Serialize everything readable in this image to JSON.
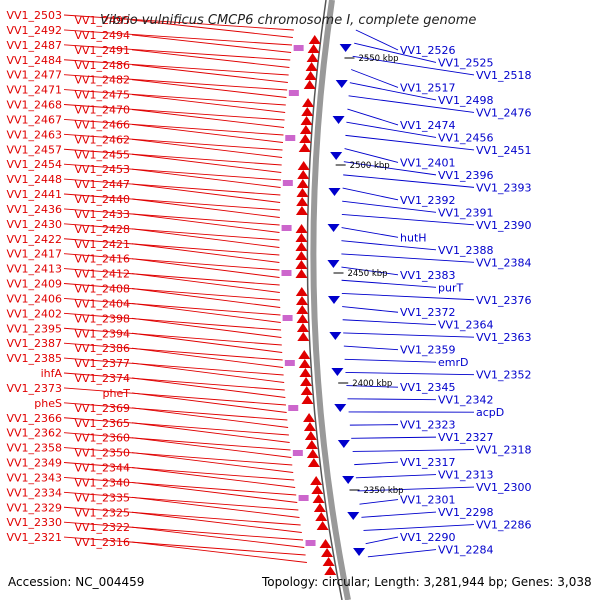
{
  "title": "Vibrio vulnificus CMCP6 chromosome I, complete genome",
  "footer": {
    "accession": "Accession: NC_004459",
    "summary": "Topology: circular; Length: 3,281,944 bp; Genes: 3,038"
  },
  "colors": {
    "forward_strand": "#e00000",
    "reverse_strand": "#0000cc",
    "backbone": "#888888"
  },
  "scale_marks": [
    {
      "label": "2550 kbp"
    },
    {
      "label": "2500 kbp"
    },
    {
      "label": "2450 kbp"
    },
    {
      "label": "2400 kbp"
    },
    {
      "label": "2350 kbp"
    }
  ],
  "left_labels": [
    "VV1_2503",
    "VV1_2495",
    "VV1_2492",
    "VV1_2494",
    "VV1_2487",
    "VV1_2491",
    "VV1_2484",
    "VV1_2486",
    "VV1_2477",
    "VV1_2482",
    "VV1_2471",
    "VV1_2475",
    "VV1_2468",
    "VV1_2470",
    "VV1_2467",
    "VV1_2466",
    "VV1_2463",
    "VV1_2462",
    "VV1_2457",
    "VV1_2455",
    "VV1_2454",
    "VV1_2453",
    "VV1_2448",
    "VV1_2447",
    "VV1_2441",
    "VV1_2440",
    "VV1_2436",
    "VV1_2433",
    "VV1_2430",
    "VV1_2428",
    "VV1_2422",
    "VV1_2421",
    "VV1_2417",
    "VV1_2416",
    "VV1_2413",
    "VV1_2412",
    "VV1_2409",
    "VV1_2408",
    "VV1_2406",
    "VV1_2404",
    "VV1_2402",
    "VV1_2398",
    "VV1_2395",
    "VV1_2394",
    "VV1_2387",
    "VV1_2386",
    "VV1_2385",
    "VV1_2377",
    "ihfA",
    "VV1_2374",
    "VV1_2373",
    "pheT",
    "pheS",
    "VV1_2369",
    "VV1_2366",
    "VV1_2365",
    "VV1_2362",
    "VV1_2360",
    "VV1_2358",
    "VV1_2350",
    "VV1_2349",
    "VV1_2344",
    "VV1_2343",
    "VV1_2340",
    "VV1_2334",
    "VV1_2335",
    "VV1_2329",
    "VV1_2325",
    "VV1_2330",
    "VV1_2322",
    "VV1_2321",
    "VV1_2316"
  ],
  "right_labels": [
    "VV1_2526",
    "VV1_2525",
    "VV1_2518",
    "VV1_2517",
    "VV1_2498",
    "VV1_2476",
    "VV1_2474",
    "VV1_2456",
    "VV1_2451",
    "VV1_2401",
    "VV1_2396",
    "VV1_2393",
    "VV1_2392",
    "VV1_2391",
    "VV1_2390",
    "hutH",
    "VV1_2388",
    "VV1_2384",
    "VV1_2383",
    "purT",
    "VV1_2376",
    "VV1_2372",
    "VV1_2364",
    "VV1_2363",
    "VV1_2359",
    "emrD",
    "VV1_2352",
    "VV1_2345",
    "VV1_2342",
    "acpD",
    "VV1_2323",
    "VV1_2327",
    "VV1_2318",
    "VV1_2317",
    "VV1_2313",
    "VV1_2300",
    "VV1_2301",
    "VV1_2298",
    "VV1_2286",
    "VV1_2290",
    "VV1_2284"
  ]
}
